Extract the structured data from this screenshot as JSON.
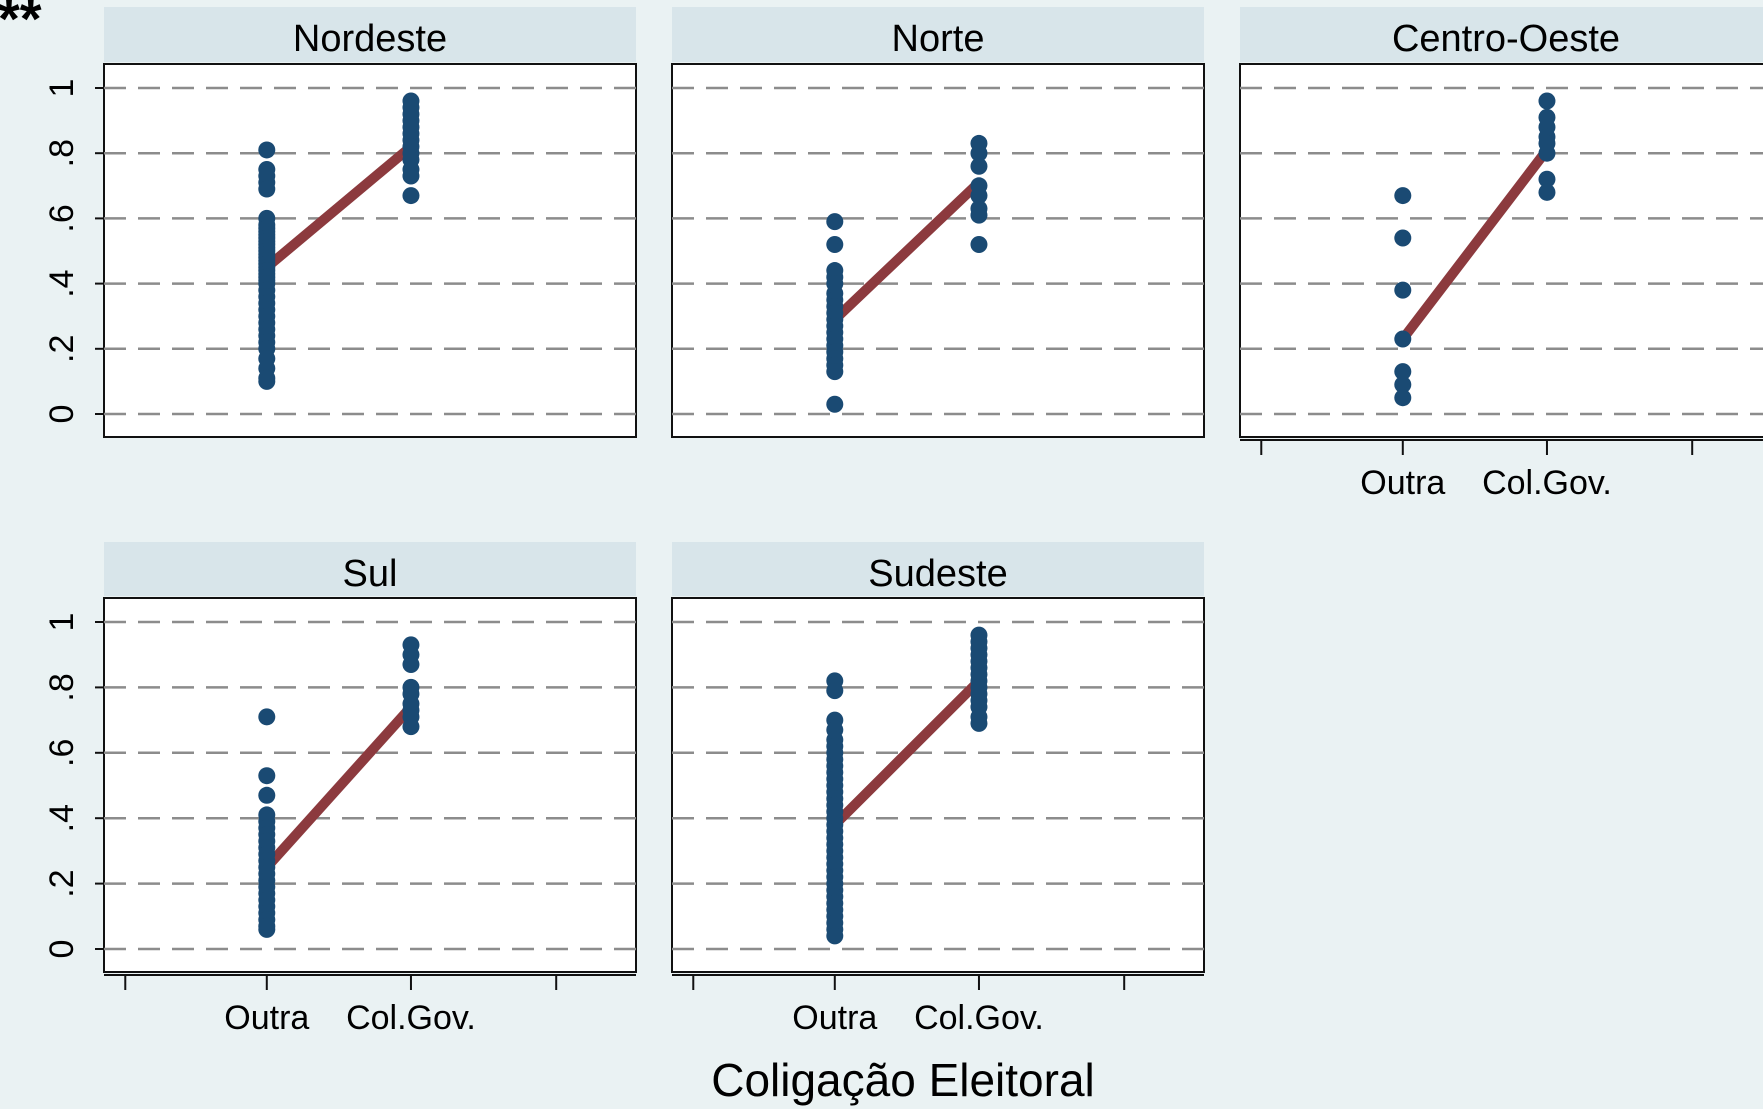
{
  "corner_mark": "**",
  "chart_data": {
    "type": "scatter",
    "xlabel": "Coligação Eleitoral",
    "ylabel": "",
    "x_categories": [
      "Outra",
      "Col.Gov."
    ],
    "y_ticks": [
      "0",
      ".2",
      ".4",
      ".6",
      ".8",
      "1"
    ],
    "ylim": [
      0,
      1
    ],
    "grid": "dashed horizontal",
    "colors": {
      "points": "#1a4a73",
      "fit_line": "#8c3a3e",
      "panel_header": "#d8e5ea",
      "background": "#eaf2f3"
    },
    "panels": [
      {
        "title": "Nordeste",
        "fit": [
          0.45,
          0.82
        ],
        "points": {
          "Outra": [
            0.81,
            0.75,
            0.73,
            0.71,
            0.69,
            0.6,
            0.58,
            0.57,
            0.56,
            0.55,
            0.54,
            0.53,
            0.52,
            0.51,
            0.5,
            0.49,
            0.48,
            0.47,
            0.46,
            0.45,
            0.44,
            0.43,
            0.42,
            0.41,
            0.4,
            0.38,
            0.36,
            0.34,
            0.32,
            0.3,
            0.28,
            0.26,
            0.24,
            0.22,
            0.2,
            0.17,
            0.14,
            0.11,
            0.1
          ],
          "Col.Gov.": [
            0.96,
            0.94,
            0.92,
            0.9,
            0.88,
            0.86,
            0.84,
            0.82,
            0.8,
            0.78,
            0.75,
            0.73,
            0.67
          ]
        }
      },
      {
        "title": "Norte",
        "fit": [
          0.29,
          0.71
        ],
        "points": {
          "Outra": [
            0.59,
            0.52,
            0.44,
            0.42,
            0.4,
            0.37,
            0.35,
            0.33,
            0.31,
            0.29,
            0.27,
            0.25,
            0.23,
            0.21,
            0.19,
            0.17,
            0.15,
            0.13,
            0.03
          ],
          "Col.Gov.": [
            0.83,
            0.8,
            0.76,
            0.7,
            0.67,
            0.63,
            0.61,
            0.52
          ]
        }
      },
      {
        "title": "Centro-Oeste",
        "fit": [
          0.23,
          0.81
        ],
        "points": {
          "Outra": [
            0.67,
            0.54,
            0.38,
            0.23,
            0.13,
            0.09,
            0.05
          ],
          "Col.Gov.": [
            0.96,
            0.91,
            0.88,
            0.85,
            0.83,
            0.8,
            0.72,
            0.68
          ]
        }
      },
      {
        "title": "Sul",
        "fit": [
          0.25,
          0.74
        ],
        "points": {
          "Outra": [
            0.71,
            0.53,
            0.47,
            0.41,
            0.39,
            0.37,
            0.35,
            0.33,
            0.31,
            0.29,
            0.27,
            0.25,
            0.23,
            0.21,
            0.19,
            0.17,
            0.15,
            0.13,
            0.11,
            0.09,
            0.07,
            0.06
          ],
          "Col.Gov.": [
            0.93,
            0.9,
            0.87,
            0.8,
            0.78,
            0.75,
            0.73,
            0.71,
            0.68
          ]
        }
      },
      {
        "title": "Sudeste",
        "fit": [
          0.38,
          0.82
        ],
        "points": {
          "Outra": [
            0.82,
            0.79,
            0.7,
            0.67,
            0.64,
            0.62,
            0.6,
            0.58,
            0.56,
            0.54,
            0.52,
            0.5,
            0.48,
            0.46,
            0.44,
            0.42,
            0.4,
            0.38,
            0.36,
            0.34,
            0.32,
            0.3,
            0.28,
            0.26,
            0.24,
            0.22,
            0.2,
            0.18,
            0.16,
            0.14,
            0.12,
            0.1,
            0.08,
            0.06,
            0.04
          ],
          "Col.Gov.": [
            0.96,
            0.94,
            0.92,
            0.9,
            0.88,
            0.86,
            0.84,
            0.82,
            0.8,
            0.78,
            0.76,
            0.74,
            0.71,
            0.69
          ]
        }
      }
    ]
  }
}
